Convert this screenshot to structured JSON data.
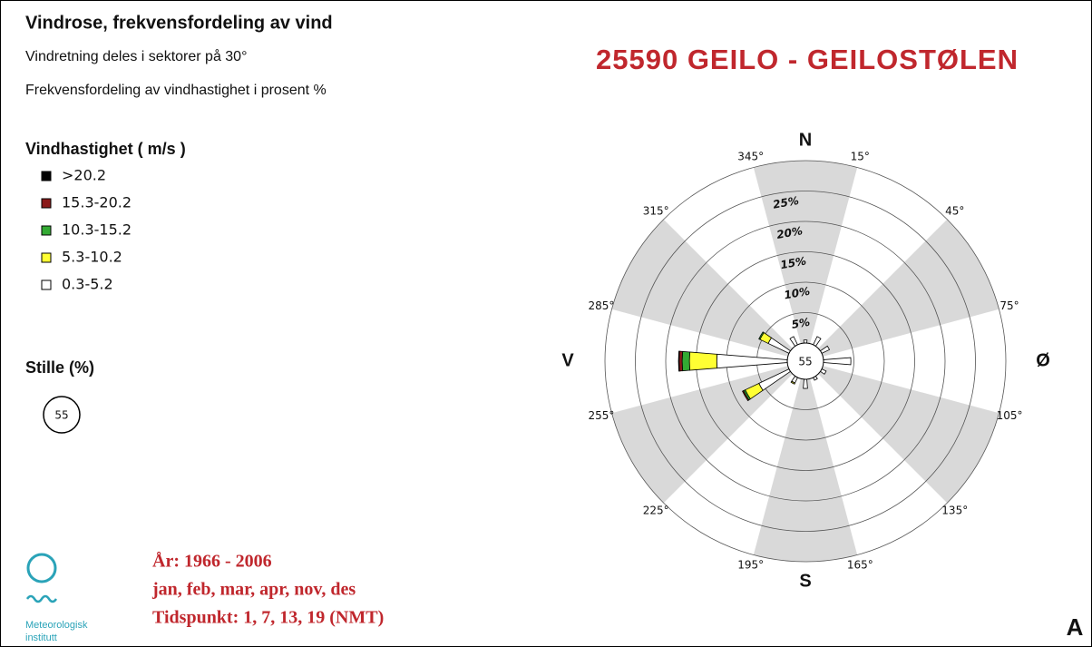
{
  "chart_data": {
    "type": "windrose",
    "title": "Vindrose, frekvensfordeling av vind",
    "subtitle": [
      "Vindretning deles i sektorer på 30°",
      "Frekvensfordeling av vindhastighet i prosent %"
    ],
    "station": "25590 GEILO - GEILOSTØLEN",
    "legend_title": "Vindhastighet ( m/s )",
    "calm_title": "Stille (%)",
    "calm": 55,
    "directions": [
      0,
      30,
      60,
      90,
      120,
      150,
      180,
      210,
      240,
      270,
      300,
      330
    ],
    "series": [
      {
        "name": "0.3-5.2",
        "color": "#ffffff",
        "values": [
          0.5,
          1.5,
          1.4,
          4.5,
          0.8,
          0.5,
          1.5,
          1.0,
          5.5,
          11.6,
          3.8,
          1.5
        ]
      },
      {
        "name": "5.3-10.2",
        "color": "#ffff33",
        "values": [
          0,
          0,
          0,
          0,
          0,
          0,
          0,
          0.2,
          2.5,
          4.5,
          1.5,
          0
        ]
      },
      {
        "name": "10.3-15.2",
        "color": "#33aa33",
        "values": [
          0,
          0,
          0,
          0,
          0,
          0,
          0,
          0,
          0.3,
          1.2,
          0.2,
          0
        ]
      },
      {
        "name": "15.3-20.2",
        "color": "#8b1a1a",
        "values": [
          0,
          0,
          0,
          0,
          0,
          0,
          0,
          0,
          0.2,
          0.5,
          0,
          0
        ]
      },
      {
        "name": ">20.2",
        "color": "#000000",
        "values": [
          0,
          0,
          0,
          0,
          0,
          0,
          0,
          0,
          0,
          0.1,
          0,
          0
        ]
      }
    ],
    "rlim": [
      0,
      30
    ],
    "rticks": [
      {
        "value": 5,
        "label": "5%"
      },
      {
        "value": 10,
        "label": "10%"
      },
      {
        "value": 15,
        "label": "15%"
      },
      {
        "value": 20,
        "label": "20%"
      },
      {
        "value": 25,
        "label": "25%"
      }
    ],
    "sector_ticks": [
      {
        "value": 15,
        "label": "15°"
      },
      {
        "value": 45,
        "label": "45°"
      },
      {
        "value": 75,
        "label": "75°"
      },
      {
        "value": 105,
        "label": "105°"
      },
      {
        "value": 135,
        "label": "135°"
      },
      {
        "value": 165,
        "label": "165°"
      },
      {
        "value": 195,
        "label": "195°"
      },
      {
        "value": 225,
        "label": "225°"
      },
      {
        "value": 255,
        "label": "255°"
      },
      {
        "value": 285,
        "label": "285°"
      },
      {
        "value": 315,
        "label": "315°"
      },
      {
        "value": 345,
        "label": "345°"
      }
    ],
    "cardinals": [
      "N",
      "Ø",
      "S",
      "V"
    ],
    "footer": [
      "År: 1966 - 2006",
      "jan, feb, mar, apr, nov, des",
      "Tidspunkt: 1, 7, 13, 19 (NMT)"
    ],
    "logo": [
      "Meteorologisk",
      "institutt"
    ],
    "panel": "A"
  }
}
